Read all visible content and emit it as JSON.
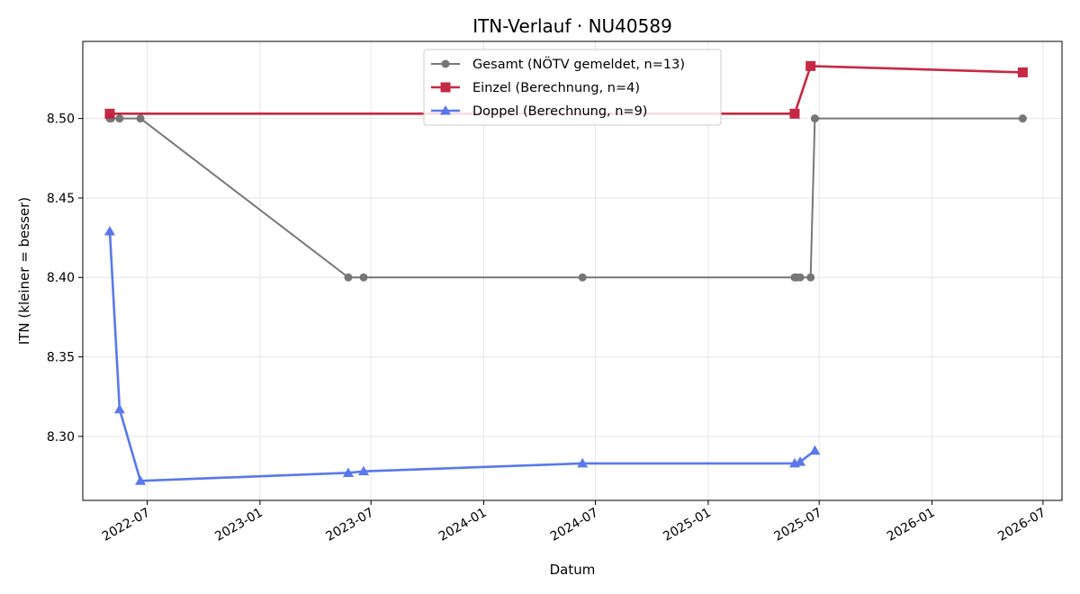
{
  "chart_data": {
    "type": "line",
    "title": "ITN-Verlauf · NU40589",
    "xlabel": "Datum",
    "ylabel": "ITN  (kleiner = besser)",
    "x_axis_type": "date",
    "xlim": [
      "2022-03-18",
      "2026-08-01"
    ],
    "ylim": [
      8.2597,
      8.5485
    ],
    "x_ticks": [
      "2022-07-01",
      "2023-01-01",
      "2023-07-01",
      "2024-01-01",
      "2024-07-01",
      "2025-01-01",
      "2025-07-01",
      "2026-01-01",
      "2026-07-01"
    ],
    "x_tick_labels": [
      "2022-07",
      "2023-01",
      "2023-07",
      "2024-01",
      "2024-07",
      "2025-01",
      "2025-07",
      "2026-01",
      "2026-07"
    ],
    "y_ticks": [
      8.3,
      8.35,
      8.4,
      8.45,
      8.5
    ],
    "y_tick_labels": [
      "8.30",
      "8.35",
      "8.40",
      "8.45",
      "8.50"
    ],
    "grid": true,
    "legend_position": "top-center",
    "series": [
      {
        "name": "Gesamt (NÖTV gemeldet, n=13)",
        "color": "#606060",
        "marker": "circle",
        "points": [
          {
            "x": "2022-05-01",
            "y": 8.5
          },
          {
            "x": "2022-05-03",
            "y": 8.5
          },
          {
            "x": "2022-05-17",
            "y": 8.5
          },
          {
            "x": "2022-06-20",
            "y": 8.5
          },
          {
            "x": "2023-05-25",
            "y": 8.4
          },
          {
            "x": "2023-06-19",
            "y": 8.4
          },
          {
            "x": "2024-06-10",
            "y": 8.4
          },
          {
            "x": "2025-05-22",
            "y": 8.4
          },
          {
            "x": "2025-05-25",
            "y": 8.4
          },
          {
            "x": "2025-05-31",
            "y": 8.4
          },
          {
            "x": "2025-06-17",
            "y": 8.4
          },
          {
            "x": "2025-06-24",
            "y": 8.5
          },
          {
            "x": "2026-05-29",
            "y": 8.5
          }
        ]
      },
      {
        "name": "Einzel (Berechnung, n=4)",
        "color": "#c41e3a",
        "marker": "square",
        "points": [
          {
            "x": "2022-05-01",
            "y": 8.503
          },
          {
            "x": "2025-05-22",
            "y": 8.503
          },
          {
            "x": "2025-06-17",
            "y": 8.533
          },
          {
            "x": "2026-05-29",
            "y": 8.529
          }
        ]
      },
      {
        "name": "Doppel (Berechnung, n=9)",
        "color": "#4a6ae8",
        "marker": "triangle",
        "points": [
          {
            "x": "2022-05-01",
            "y": 8.429
          },
          {
            "x": "2022-05-17",
            "y": 8.317
          },
          {
            "x": "2022-06-20",
            "y": 8.272
          },
          {
            "x": "2023-05-25",
            "y": 8.277
          },
          {
            "x": "2023-06-19",
            "y": 8.278
          },
          {
            "x": "2024-06-10",
            "y": 8.283
          },
          {
            "x": "2025-05-22",
            "y": 8.283
          },
          {
            "x": "2025-05-31",
            "y": 8.284
          },
          {
            "x": "2025-06-24",
            "y": 8.291
          }
        ]
      }
    ]
  }
}
